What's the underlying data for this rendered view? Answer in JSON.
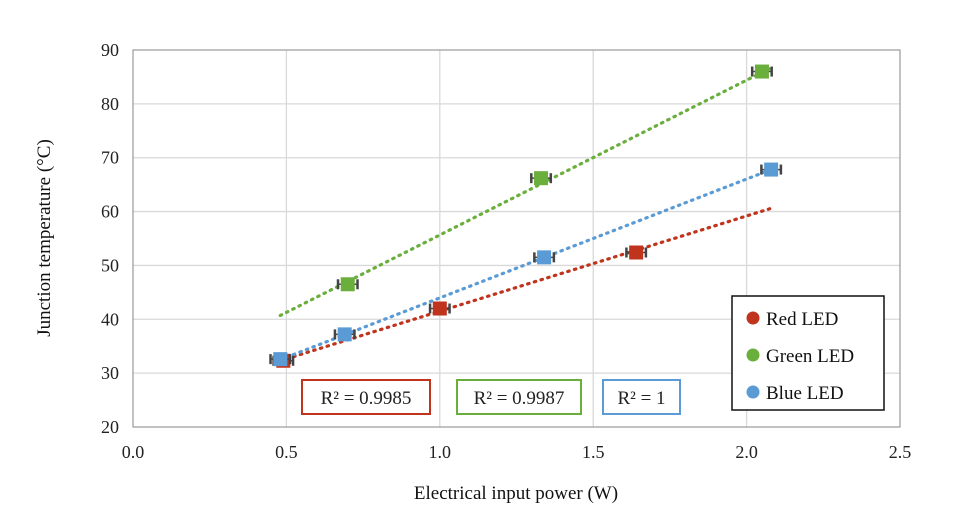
{
  "chart_data": {
    "type": "scatter",
    "title": "",
    "xlabel": "Electrical input power (W)",
    "ylabel": "Junction temperature (°C)",
    "xlim": [
      0.0,
      2.5
    ],
    "ylim": [
      20,
      90
    ],
    "x_ticks": [
      "0.0",
      "0.5",
      "1.0",
      "1.5",
      "2.0",
      "2.5"
    ],
    "y_ticks": [
      "20",
      "30",
      "40",
      "50",
      "60",
      "70",
      "80",
      "90"
    ],
    "grid": true,
    "legend_placement": "bottom-right",
    "series": [
      {
        "name": "Red LED",
        "color": "#c0341d",
        "points": [
          [
            0.49,
            32.3
          ],
          [
            1.0,
            42.0
          ],
          [
            1.64,
            52.4
          ]
        ],
        "trendline": {
          "x0": 0.48,
          "y0": 32.3,
          "x1": 2.08,
          "y1": 60.6
        },
        "r2": "R² = 0.9985"
      },
      {
        "name": "Green LED",
        "color": "#6aae3c",
        "points": [
          [
            0.7,
            46.5
          ],
          [
            1.33,
            66.2
          ],
          [
            2.05,
            86.0
          ]
        ],
        "trendline": {
          "x0": 0.48,
          "y0": 40.7,
          "x1": 2.08,
          "y1": 86.7
        },
        "r2": "R² = 0.9987"
      },
      {
        "name": "Blue LED",
        "color": "#5b9bd5",
        "points": [
          [
            0.48,
            32.6
          ],
          [
            0.69,
            37.2
          ],
          [
            1.34,
            51.5
          ],
          [
            2.08,
            67.8
          ]
        ],
        "trendline": {
          "x0": 0.48,
          "y0": 32.5,
          "x1": 2.08,
          "y1": 67.8
        },
        "r2": "R² = 1"
      }
    ]
  }
}
